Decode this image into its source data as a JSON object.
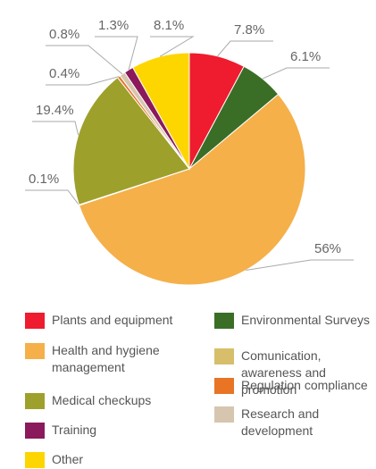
{
  "chart_data": {
    "type": "pie",
    "categories": [
      "Plants and equipment",
      "Environmental Surveys",
      "Health and hygiene management",
      "Comunication, awareness and promotion",
      "Medical checkups",
      "Regulation compliance",
      "Research and development",
      "Training",
      "Other"
    ],
    "values": [
      7.8,
      6.1,
      56,
      0.1,
      19.4,
      0.4,
      0.8,
      1.3,
      8.1
    ],
    "value_labels": [
      "7.8%",
      "6.1%",
      "56%",
      "0.1%",
      "19.4%",
      "0.4%",
      "0.8%",
      "1.3%",
      "8.1%"
    ],
    "colors": [
      "#ee1c2e",
      "#3a6e27",
      "#f5b04a",
      "#d7be6a",
      "#9ea02c",
      "#e87424",
      "#d6c6b0",
      "#8b1a5c",
      "#fdd600"
    ],
    "legend": "bottom"
  }
}
